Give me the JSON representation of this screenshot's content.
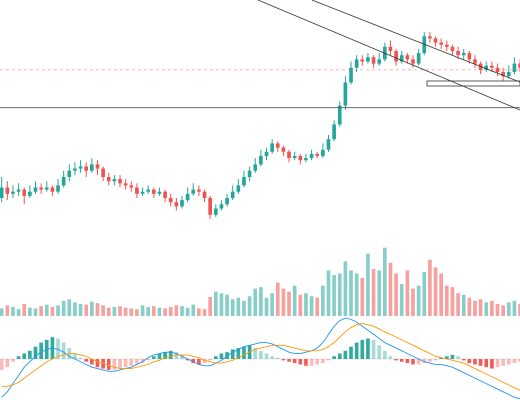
{
  "chart_data": {
    "type": "candlestick",
    "title": "",
    "xlabel": "",
    "ylabel": "",
    "grid": false,
    "legend": "none",
    "colors": {
      "up": "#26a69a",
      "down": "#ef5350",
      "up_volume": "#26a69a",
      "down_volume": "#ef5350",
      "macd_line": "#2196f3",
      "signal_line": "#ff9800",
      "price_line": "#ef5350",
      "horizontal_line": "#555555",
      "trend_line": "#333333"
    },
    "price": {
      "ylim": [
        0,
        100
      ],
      "candles": [
        [
          20,
          25,
          30,
          18
        ],
        [
          25,
          22,
          28,
          19
        ],
        [
          22,
          23,
          26,
          20
        ],
        [
          23,
          24,
          27,
          21
        ],
        [
          24,
          21,
          25,
          17
        ],
        [
          21,
          23,
          26,
          20
        ],
        [
          23,
          25,
          28,
          22
        ],
        [
          25,
          24,
          27,
          22
        ],
        [
          24,
          25,
          28,
          23
        ],
        [
          25,
          23,
          26,
          21
        ],
        [
          23,
          26,
          29,
          22
        ],
        [
          26,
          30,
          33,
          25
        ],
        [
          30,
          33,
          36,
          28
        ],
        [
          33,
          34,
          37,
          31
        ],
        [
          34,
          35,
          38,
          32
        ],
        [
          35,
          33,
          37,
          30
        ],
        [
          33,
          36,
          39,
          32
        ],
        [
          36,
          34,
          38,
          31
        ],
        [
          34,
          30,
          35,
          28
        ],
        [
          30,
          28,
          32,
          26
        ],
        [
          28,
          29,
          31,
          26
        ],
        [
          29,
          27,
          31,
          25
        ],
        [
          27,
          26,
          29,
          24
        ],
        [
          26,
          25,
          28,
          23
        ],
        [
          25,
          22,
          27,
          20
        ],
        [
          22,
          23,
          25,
          21
        ],
        [
          23,
          24,
          26,
          22
        ],
        [
          24,
          22,
          25,
          20
        ],
        [
          22,
          23,
          25,
          21
        ],
        [
          23,
          20,
          24,
          18
        ],
        [
          20,
          18,
          22,
          16
        ],
        [
          18,
          16,
          20,
          14
        ],
        [
          16,
          19,
          21,
          15
        ],
        [
          19,
          22,
          25,
          18
        ],
        [
          22,
          24,
          27,
          21
        ],
        [
          24,
          23,
          26,
          21
        ],
        [
          23,
          20,
          24,
          18
        ],
        [
          20,
          12,
          21,
          10
        ],
        [
          12,
          15,
          17,
          11
        ],
        [
          15,
          17,
          19,
          14
        ],
        [
          17,
          20,
          22,
          16
        ],
        [
          20,
          23,
          26,
          19
        ],
        [
          23,
          26,
          29,
          22
        ],
        [
          26,
          30,
          33,
          25
        ],
        [
          30,
          33,
          35,
          28
        ],
        [
          33,
          36,
          39,
          32
        ],
        [
          36,
          40,
          43,
          35
        ],
        [
          40,
          42,
          44,
          38
        ],
        [
          42,
          46,
          48,
          41
        ],
        [
          46,
          44,
          47,
          42
        ],
        [
          44,
          42,
          45,
          40
        ],
        [
          42,
          39,
          43,
          37
        ],
        [
          39,
          40,
          42,
          38
        ],
        [
          40,
          38,
          41,
          36
        ],
        [
          38,
          39,
          41,
          37
        ],
        [
          39,
          41,
          43,
          38
        ],
        [
          41,
          40,
          42,
          39
        ],
        [
          40,
          43,
          46,
          39
        ],
        [
          43,
          48,
          50,
          42
        ],
        [
          48,
          55,
          57,
          47
        ],
        [
          55,
          64,
          66,
          54
        ],
        [
          64,
          75,
          78,
          62
        ],
        [
          75,
          82,
          85,
          74
        ],
        [
          82,
          86,
          88,
          80
        ],
        [
          86,
          85,
          88,
          83
        ],
        [
          85,
          87,
          89,
          84
        ],
        [
          87,
          84,
          88,
          82
        ],
        [
          84,
          86,
          89,
          83
        ],
        [
          86,
          92,
          94,
          85
        ],
        [
          92,
          90,
          95,
          88
        ],
        [
          90,
          85,
          91,
          83
        ],
        [
          85,
          88,
          90,
          84
        ],
        [
          88,
          86,
          89,
          84
        ],
        [
          86,
          84,
          88,
          82
        ],
        [
          84,
          89,
          91,
          83
        ],
        [
          89,
          97,
          99,
          88
        ],
        [
          97,
          96,
          99,
          94
        ],
        [
          96,
          94,
          97,
          92
        ],
        [
          94,
          93,
          96,
          91
        ],
        [
          93,
          92,
          95,
          90
        ],
        [
          92,
          90,
          93,
          88
        ],
        [
          90,
          88,
          92,
          86
        ],
        [
          88,
          89,
          91,
          86
        ],
        [
          89,
          86,
          90,
          84
        ],
        [
          86,
          84,
          88,
          82
        ],
        [
          84,
          81,
          85,
          79
        ],
        [
          81,
          83,
          85,
          80
        ],
        [
          83,
          82,
          85,
          80
        ],
        [
          82,
          80,
          84,
          78
        ],
        [
          80,
          78,
          82,
          76
        ],
        [
          78,
          80,
          83,
          77
        ],
        [
          80,
          84,
          87,
          79
        ],
        [
          84,
          82,
          86,
          80
        ]
      ],
      "horizontal_lines": [
        63
      ],
      "price_line": 81
    },
    "volume": {
      "ylim": [
        0,
        100
      ],
      "values": [
        10,
        14,
        12,
        9,
        16,
        11,
        10,
        13,
        15,
        12,
        14,
        20,
        22,
        18,
        16,
        15,
        19,
        17,
        14,
        11,
        12,
        13,
        11,
        10,
        9,
        14,
        12,
        13,
        11,
        10,
        12,
        14,
        13,
        11,
        15,
        10,
        9,
        25,
        32,
        30,
        28,
        22,
        24,
        20,
        26,
        36,
        38,
        24,
        30,
        44,
        36,
        32,
        40,
        28,
        30,
        26,
        24,
        40,
        60,
        54,
        56,
        72,
        60,
        56,
        50,
        82,
        62,
        60,
        90,
        70,
        56,
        42,
        60,
        36,
        40,
        58,
        74,
        64,
        56,
        40,
        38,
        30,
        28,
        24,
        20,
        22,
        18,
        20,
        16,
        14,
        18,
        20,
        16
      ],
      "direction": [
        1,
        0,
        1,
        1,
        0,
        1,
        1,
        0,
        1,
        0,
        1,
        1,
        1,
        1,
        1,
        0,
        1,
        0,
        0,
        0,
        1,
        0,
        0,
        0,
        0,
        1,
        1,
        0,
        1,
        0,
        0,
        0,
        1,
        1,
        1,
        0,
        0,
        0,
        1,
        1,
        1,
        1,
        1,
        1,
        1,
        1,
        1,
        1,
        1,
        0,
        0,
        0,
        1,
        0,
        1,
        1,
        0,
        1,
        1,
        1,
        1,
        1,
        1,
        1,
        0,
        1,
        0,
        1,
        1,
        0,
        0,
        1,
        0,
        0,
        1,
        1,
        0,
        0,
        0,
        0,
        0,
        0,
        1,
        0,
        0,
        0,
        1,
        0,
        0,
        0,
        1,
        1,
        0
      ]
    },
    "macd": {
      "ylim": [
        -30,
        30
      ],
      "histogram": [
        -8,
        -6,
        -2,
        2,
        4,
        6,
        9,
        12,
        14,
        16,
        15,
        12,
        8,
        4,
        1,
        -2,
        -4,
        -6,
        -7,
        -8,
        -8,
        -7,
        -6,
        -5,
        -4,
        -3,
        -1,
        2,
        4,
        5,
        6,
        5,
        3,
        -1,
        -3,
        -4,
        -3,
        -1,
        2,
        4,
        5,
        7,
        8,
        9,
        10,
        8,
        6,
        4,
        2,
        1,
        -1,
        -2,
        -3,
        -4,
        -5,
        -5,
        -4,
        -3,
        -1,
        2,
        4,
        6,
        9,
        12,
        14,
        15,
        14,
        10,
        6,
        2,
        -1,
        -2,
        -3,
        -4,
        -4,
        -3,
        -2,
        -1,
        1,
        2,
        3,
        2,
        -1,
        -3,
        -4,
        -5,
        -6,
        -7,
        -6,
        -5,
        -4,
        -3,
        -2
      ],
      "macd_line": [
        -28,
        -24,
        -18,
        -12,
        -6,
        -2,
        2,
        5,
        7,
        8,
        7,
        5,
        2,
        0,
        -2,
        -4,
        -6,
        -7,
        -8,
        -9,
        -9,
        -8,
        -7,
        -6,
        -4,
        -2,
        1,
        3,
        4,
        5,
        5,
        4,
        2,
        0,
        -2,
        -4,
        -5,
        -5,
        -3,
        -1,
        2,
        5,
        7,
        9,
        10,
        11,
        12,
        12,
        11,
        9,
        7,
        5,
        4,
        4,
        5,
        6,
        8,
        12,
        18,
        24,
        28,
        30,
        29,
        27,
        24,
        21,
        18,
        15,
        12,
        10,
        8,
        6,
        4,
        2,
        0,
        -2,
        -3,
        -4,
        -4,
        -5,
        -6,
        -8,
        -10,
        -12,
        -14,
        -16,
        -18,
        -20,
        -22,
        -24,
        -26,
        -28,
        -29
      ],
      "signal_line": [
        -20,
        -20,
        -19,
        -17,
        -14,
        -11,
        -8,
        -5,
        -2,
        0,
        2,
        3,
        4,
        4,
        3,
        2,
        0,
        -2,
        -3,
        -5,
        -6,
        -7,
        -7,
        -7,
        -6,
        -5,
        -4,
        -2,
        -1,
        1,
        2,
        3,
        3,
        3,
        2,
        1,
        -1,
        -2,
        -3,
        -3,
        -2,
        -1,
        1,
        3,
        5,
        7,
        8,
        9,
        10,
        10,
        10,
        9,
        8,
        7,
        6,
        6,
        6,
        7,
        9,
        12,
        16,
        20,
        23,
        25,
        26,
        25,
        24,
        22,
        20,
        18,
        16,
        14,
        12,
        10,
        8,
        6,
        4,
        2,
        1,
        0,
        -1,
        -2,
        -3,
        -5,
        -7,
        -9,
        -11,
        -13,
        -15,
        -17,
        -19,
        -21,
        -23
      ]
    }
  }
}
